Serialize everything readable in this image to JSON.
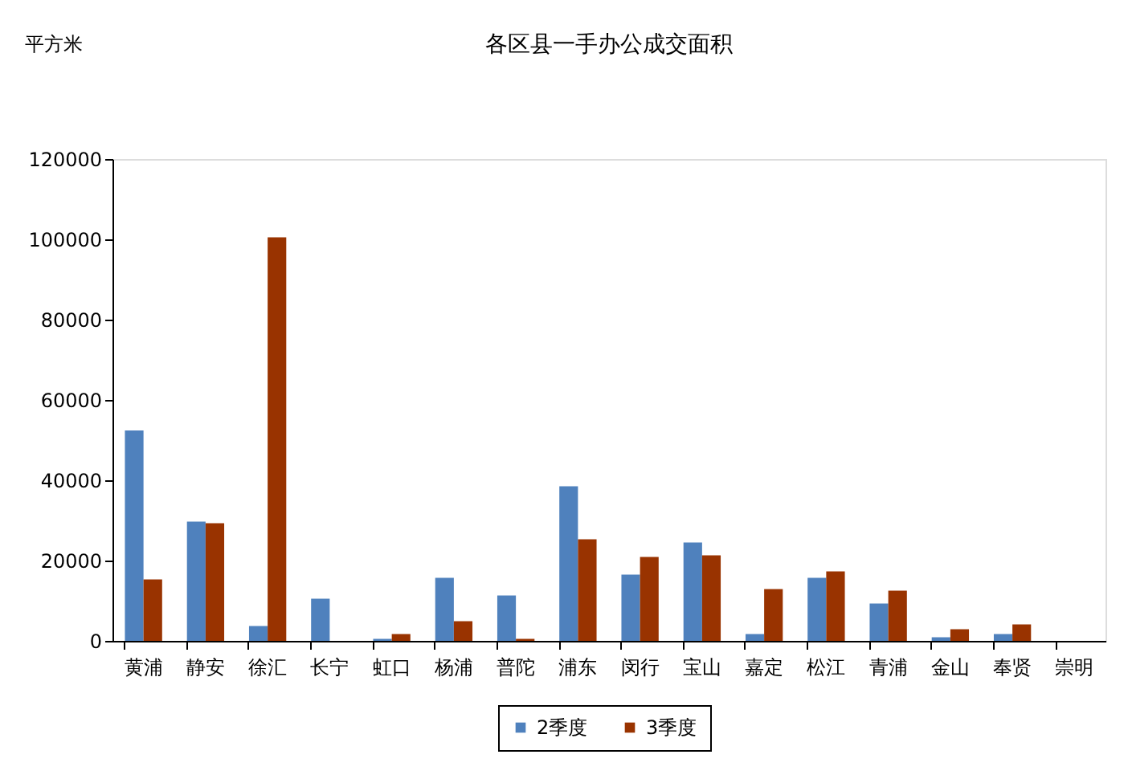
{
  "chart_data": {
    "type": "bar",
    "title": "各区县一手办公成交面积",
    "ylabel": "平方米",
    "categories": [
      "黄浦",
      "静安",
      "徐汇",
      "长宁",
      "虹口",
      "杨浦",
      "普陀",
      "浦东",
      "闵行",
      "宝山",
      "嘉定",
      "松江",
      "青浦",
      "金山",
      "奉贤",
      "崇明"
    ],
    "series": [
      {
        "name": "2季度",
        "color": "#4f81bd",
        "values": [
          52400,
          29700,
          3700,
          10500,
          500,
          15700,
          11300,
          38500,
          16500,
          24500,
          1700,
          15700,
          9300,
          900,
          1700,
          0
        ]
      },
      {
        "name": "3季度",
        "color": "#993300",
        "values": [
          15300,
          29300,
          100500,
          0,
          1700,
          4900,
          500,
          25300,
          20900,
          21300,
          12900,
          17300,
          12500,
          2900,
          4100,
          0
        ]
      }
    ],
    "ylim": [
      0,
      120000
    ],
    "yticks": [
      0,
      20000,
      40000,
      60000,
      80000,
      100000,
      120000
    ],
    "grid": false,
    "legend": "bottom"
  }
}
